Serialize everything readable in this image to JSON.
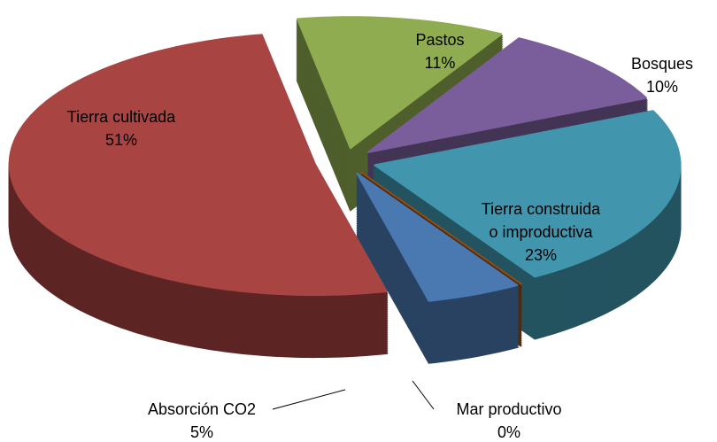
{
  "chart_data": {
    "type": "pie3d",
    "categories": [
      "Pastos",
      "Bosques",
      "Tierra construida o improductiva",
      "Mar productivo",
      "Absorción CO2",
      "Tierra cultivada"
    ],
    "values": [
      11,
      10,
      23,
      0,
      5,
      51
    ],
    "value_labels": [
      "11%",
      "10%",
      "23%",
      "0%",
      "5%",
      "51%"
    ],
    "colors": [
      "#8fad50",
      "#7a5e9b",
      "#4196ae",
      "#8b4d1a",
      "#4a78b1",
      "#a84442"
    ]
  }
}
